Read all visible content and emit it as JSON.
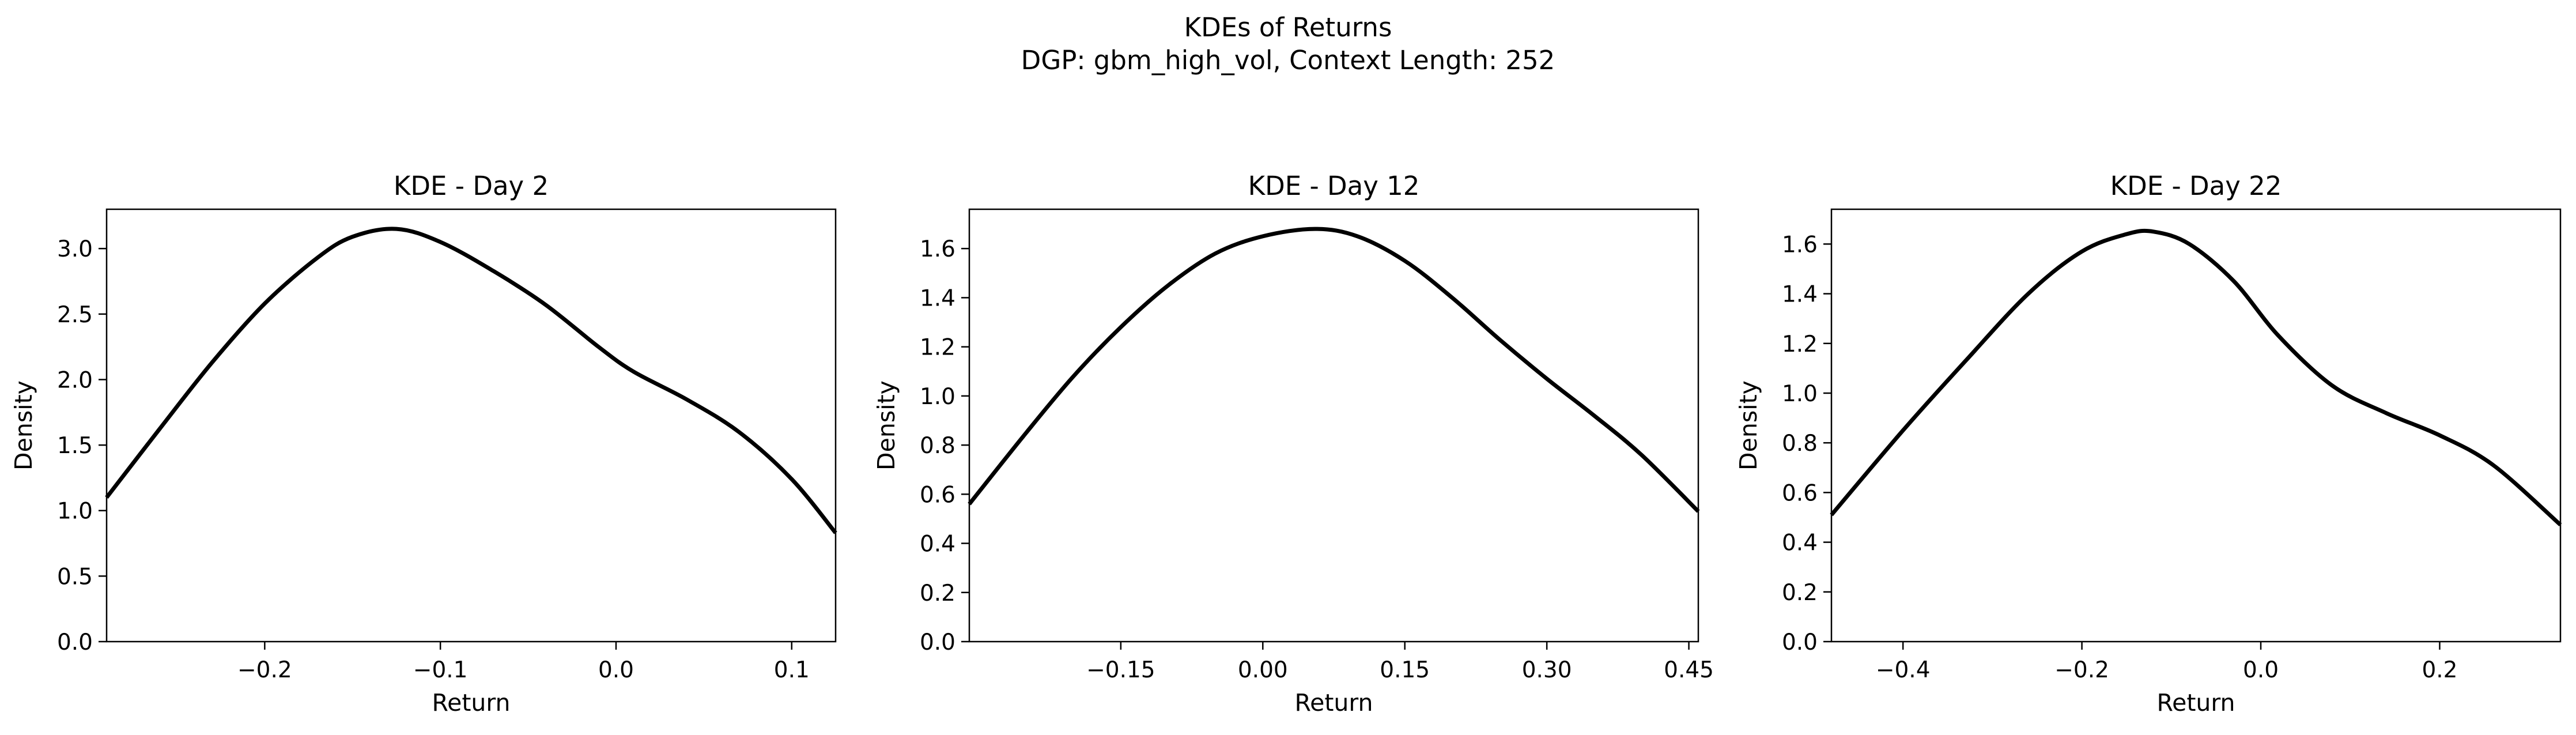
{
  "figure": {
    "title_line1": "KDEs of Returns",
    "title_line2": "DGP: gbm_high_vol, Context Length: 252"
  },
  "chart_data": [
    {
      "type": "line",
      "title": "KDE - Day 2",
      "xlabel": "Return",
      "ylabel": "Density",
      "xlim": [
        -0.29,
        0.125
      ],
      "ylim": [
        0,
        3.3
      ],
      "xticks": [
        -0.2,
        -0.1,
        0.0,
        0.1
      ],
      "xtick_labels": [
        "−0.2",
        "−0.1",
        "0.0",
        "0.1"
      ],
      "yticks": [
        0,
        0.5,
        1.0,
        1.5,
        2.0,
        2.5,
        3.0
      ],
      "ytick_labels": [
        "0.0",
        "0.5",
        "1.0",
        "1.5",
        "2.0",
        "2.5",
        "3.0"
      ],
      "grid": false,
      "color": "#000000",
      "series": [
        {
          "x": [
            -0.29,
            -0.26,
            -0.23,
            -0.2,
            -0.17,
            -0.15,
            -0.125,
            -0.1,
            -0.07,
            -0.04,
            -0.01,
            0.01,
            0.04,
            0.07,
            0.1,
            0.125
          ],
          "y": [
            1.1,
            1.62,
            2.13,
            2.58,
            2.93,
            3.09,
            3.15,
            3.05,
            2.83,
            2.57,
            2.25,
            2.06,
            1.85,
            1.6,
            1.24,
            0.83
          ]
        }
      ]
    },
    {
      "type": "line",
      "title": "KDE - Day 12",
      "xlabel": "Return",
      "ylabel": "Density",
      "xlim": [
        -0.31,
        0.46
      ],
      "ylim": [
        0,
        1.76
      ],
      "xticks": [
        -0.15,
        0.0,
        0.15,
        0.3,
        0.45
      ],
      "xtick_labels": [
        "−0.15",
        "0.00",
        "0.15",
        "0.30",
        "0.45"
      ],
      "yticks": [
        0,
        0.2,
        0.4,
        0.6,
        0.8,
        1.0,
        1.2,
        1.4,
        1.6
      ],
      "ytick_labels": [
        "0.0",
        "0.2",
        "0.4",
        "0.6",
        "0.8",
        "1.0",
        "1.2",
        "1.4",
        "1.6"
      ],
      "grid": false,
      "color": "#000000",
      "series": [
        {
          "x": [
            -0.31,
            -0.25,
            -0.2,
            -0.15,
            -0.1,
            -0.05,
            0.0,
            0.055,
            0.1,
            0.15,
            0.2,
            0.25,
            0.3,
            0.35,
            0.4,
            0.46
          ],
          "y": [
            0.56,
            0.85,
            1.08,
            1.28,
            1.45,
            1.58,
            1.65,
            1.68,
            1.65,
            1.55,
            1.4,
            1.23,
            1.07,
            0.92,
            0.76,
            0.53
          ]
        }
      ]
    },
    {
      "type": "line",
      "title": "KDE - Day 22",
      "xlabel": "Return",
      "ylabel": "Density",
      "xlim": [
        -0.48,
        0.335
      ],
      "ylim": [
        0,
        1.74
      ],
      "xticks": [
        -0.4,
        -0.2,
        0.0,
        0.2
      ],
      "xtick_labels": [
        "−0.4",
        "−0.2",
        "0.0",
        "0.2"
      ],
      "yticks": [
        0,
        0.2,
        0.4,
        0.6,
        0.8,
        1.0,
        1.2,
        1.4,
        1.6
      ],
      "ytick_labels": [
        "0.0",
        "0.2",
        "0.4",
        "0.6",
        "0.8",
        "1.0",
        "1.2",
        "1.4",
        "1.6"
      ],
      "grid": false,
      "color": "#000000",
      "series": [
        {
          "x": [
            -0.48,
            -0.4,
            -0.33,
            -0.26,
            -0.2,
            -0.15,
            -0.12,
            -0.08,
            -0.03,
            0.02,
            0.08,
            0.14,
            0.2,
            0.26,
            0.335
          ],
          "y": [
            0.51,
            0.85,
            1.13,
            1.4,
            1.57,
            1.64,
            1.65,
            1.6,
            1.45,
            1.23,
            1.03,
            0.92,
            0.83,
            0.71,
            0.47
          ]
        }
      ]
    }
  ]
}
